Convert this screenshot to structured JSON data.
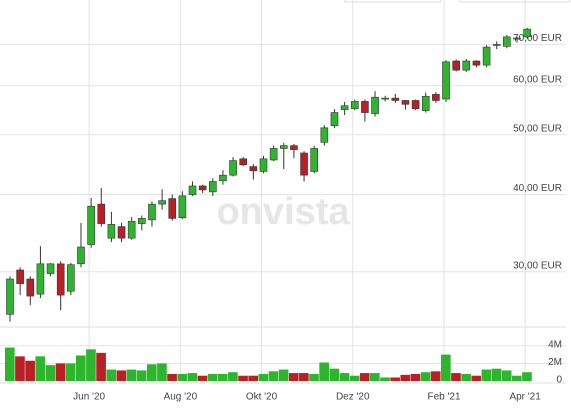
{
  "chart_data": {
    "type": "candlestick",
    "watermark": "onvista",
    "log_scale": true,
    "grid": true,
    "up_color": "#2db52d",
    "down_color": "#b82025",
    "categories": [
      null,
      null,
      null,
      null,
      null,
      null,
      null,
      null,
      "Jun '20",
      null,
      null,
      null,
      null,
      null,
      null,
      null,
      null,
      "Aug '20",
      null,
      null,
      null,
      null,
      null,
      null,
      null,
      "Okt '20",
      null,
      null,
      null,
      null,
      null,
      null,
      null,
      null,
      "Dez '20",
      null,
      null,
      null,
      null,
      null,
      null,
      null,
      null,
      "Feb '21",
      null,
      null,
      null,
      null,
      null,
      null,
      null,
      "Apr '21"
    ],
    "open": [
      25.6,
      30.2,
      29.2,
      27.6,
      29.8,
      30.9,
      27.9,
      30.9,
      33.2,
      38.6,
      34.0,
      35.5,
      34.0,
      35.9,
      36.4,
      38.6,
      39.4,
      36.7,
      40.0,
      41.3,
      40.4,
      42.1,
      43.0,
      45.7,
      44.4,
      43.6,
      45.5,
      47.5,
      48.0,
      46.7,
      43.6,
      48.6,
      51.7,
      54.9,
      55.1,
      56.6,
      54.1,
      57.1,
      57.3,
      56.8,
      56.8,
      54.7,
      58.1,
      57.1,
      65.8,
      63.6,
      65.8,
      64.8,
      69.8,
      69.5,
      71.4,
      72.0
    ],
    "high": [
      29.5,
      30.5,
      29.5,
      33.0,
      31.0,
      31.2,
      31.0,
      36.0,
      39.5,
      41.0,
      37.5,
      36.0,
      36.8,
      37.0,
      39.0,
      40.8,
      40.0,
      40.5,
      42.0,
      41.5,
      42.5,
      43.8,
      46.0,
      46.0,
      44.8,
      46.2,
      48.0,
      48.5,
      48.3,
      47.0,
      48.0,
      51.8,
      55.0,
      56.5,
      57.0,
      57.0,
      58.8,
      57.8,
      58.2,
      56.9,
      57.0,
      58.5,
      58.6,
      66.0,
      66.2,
      66.3,
      66.0,
      69.8,
      70.8,
      72.5,
      72.0,
      74.5
    ],
    "low": [
      24.9,
      27.5,
      26.5,
      27.2,
      29.5,
      26.0,
      27.5,
      30.5,
      32.8,
      35.5,
      33.5,
      33.5,
      33.8,
      35.0,
      35.5,
      37.8,
      36.3,
      36.5,
      39.8,
      40.2,
      39.8,
      41.5,
      42.8,
      44.5,
      42.3,
      43.3,
      45.3,
      44.0,
      45.8,
      42.0,
      43.3,
      48.0,
      51.3,
      53.8,
      54.8,
      52.5,
      53.5,
      56.6,
      56.3,
      54.9,
      54.8,
      54.3,
      56.3,
      56.5,
      63.3,
      63.2,
      64.3,
      64.3,
      68.8,
      69.0,
      70.5,
      71.5
    ],
    "close": [
      29.2,
      28.7,
      27.4,
      30.9,
      30.9,
      27.5,
      30.8,
      32.9,
      38.3,
      35.9,
      35.8,
      34.0,
      36.2,
      36.6,
      38.6,
      39.1,
      36.6,
      39.8,
      41.3,
      40.7,
      42.0,
      43.0,
      45.4,
      44.7,
      43.7,
      45.7,
      47.5,
      48.0,
      47.3,
      43.0,
      47.5,
      51.3,
      54.3,
      55.7,
      56.6,
      54.3,
      57.5,
      57.3,
      56.8,
      56.0,
      55.1,
      57.7,
      56.8,
      65.6,
      63.6,
      65.8,
      64.8,
      69.3,
      70.0,
      72.0,
      71.7,
      74.1
    ],
    "ylim": [
      24.6,
      82.6
    ],
    "yticks": [
      {
        "value": 30,
        "label": "30,00 EUR"
      },
      {
        "value": 40,
        "label": "40,00 EUR"
      },
      {
        "value": 50,
        "label": "50,00 EUR"
      },
      {
        "value": 60,
        "label": "60,00 EUR"
      },
      {
        "value": 70,
        "label": "70,00 EUR"
      }
    ],
    "volume": [
      3800000,
      2800000,
      2300000,
      2800000,
      1800000,
      2000000,
      2000000,
      2900000,
      3600000,
      3200000,
      1300000,
      1200000,
      1300000,
      1200000,
      1900000,
      2000000,
      800000,
      800000,
      900000,
      600000,
      800000,
      800000,
      1000000,
      600000,
      600000,
      800000,
      1100000,
      1300000,
      900000,
      900000,
      800000,
      2100000,
      1400000,
      900000,
      600000,
      900000,
      900000,
      400000,
      400000,
      700000,
      800000,
      1000000,
      1100000,
      3000000,
      900000,
      800000,
      600000,
      1300000,
      1400000,
      1200000,
      600000,
      1000000
    ],
    "volume_ylim": [
      0,
      5000000
    ],
    "volume_yticks": [
      0,
      {
        "value": 2000000,
        "label": "2M"
      },
      {
        "value": 4000000,
        "label": "4M"
      }
    ]
  }
}
